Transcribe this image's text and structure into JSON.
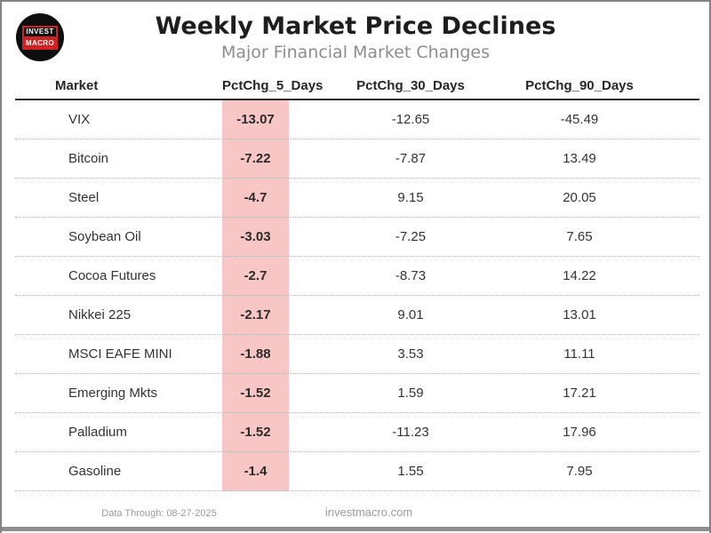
{
  "logo": {
    "top": "INVEST",
    "bottom": "MACRO"
  },
  "header": {
    "title": "Weekly Market Price Declines",
    "subtitle": "Major Financial Market Changes"
  },
  "chart_data": {
    "type": "table",
    "title": "Weekly Market Price Declines",
    "subtitle": "Major Financial Market Changes",
    "columns": [
      "Market",
      "PctChg_5_Days",
      "PctChg_30_Days",
      "PctChg_90_Days"
    ],
    "highlighted_column": "PctChg_5_Days",
    "highlight_color": "#f9c6c6",
    "rows": [
      [
        "VIX",
        "-13.07",
        "-12.65",
        "-45.49"
      ],
      [
        "Bitcoin",
        "-7.22",
        "-7.87",
        "13.49"
      ],
      [
        "Steel",
        "-4.7",
        "9.15",
        "20.05"
      ],
      [
        "Soybean Oil",
        "-3.03",
        "-7.25",
        "7.65"
      ],
      [
        "Cocoa Futures",
        "-2.7",
        "-8.73",
        "14.22"
      ],
      [
        "Nikkei 225",
        "-2.17",
        "9.01",
        "13.01"
      ],
      [
        "MSCI EAFE MINI",
        "-1.88",
        "3.53",
        "11.11"
      ],
      [
        "Emerging Mkts",
        "-1.52",
        "1.59",
        "17.21"
      ],
      [
        "Palladium",
        "-1.52",
        "-11.23",
        "17.96"
      ],
      [
        "Gasoline",
        "-1.4",
        "1.55",
        "7.95"
      ]
    ]
  },
  "footer": {
    "data_through": "Data Through: 08-27-2025",
    "website": "investmacro.com"
  }
}
